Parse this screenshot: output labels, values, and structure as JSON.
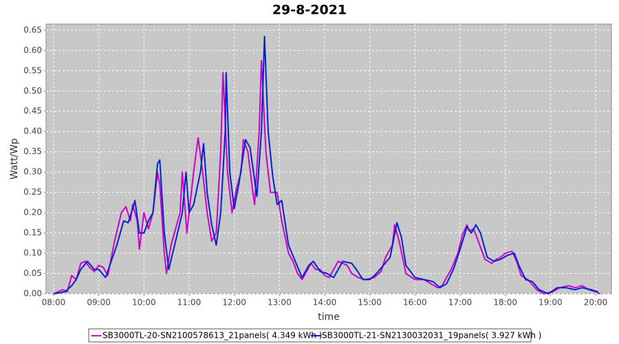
{
  "chart_data": {
    "type": "line",
    "title": "29-8-2021",
    "x_label": "time",
    "y_label": "Watt/Wp",
    "grid": true,
    "legend": "bottom",
    "xlim": [
      7.833,
      20.35
    ],
    "ylim": [
      0,
      0.665
    ],
    "xticks": [
      {
        "value": 8,
        "label": "08:00"
      },
      {
        "value": 9,
        "label": "09:00"
      },
      {
        "value": 10,
        "label": "10:00"
      },
      {
        "value": 11,
        "label": "11:00"
      },
      {
        "value": 12,
        "label": "12:00"
      },
      {
        "value": 13,
        "label": "13:00"
      },
      {
        "value": 14,
        "label": "14:00"
      },
      {
        "value": 15,
        "label": "15:00"
      },
      {
        "value": 16,
        "label": "16:00"
      },
      {
        "value": 17,
        "label": "17:00"
      },
      {
        "value": 18,
        "label": "18:00"
      },
      {
        "value": 19,
        "label": "19:00"
      },
      {
        "value": 20,
        "label": "20:00"
      }
    ],
    "yticks": [
      {
        "value": 0,
        "label": "0.00"
      },
      {
        "value": 0.05,
        "label": "0.05"
      },
      {
        "value": 0.1,
        "label": "0.10"
      },
      {
        "value": 0.15,
        "label": "0.15"
      },
      {
        "value": 0.2,
        "label": "0.20"
      },
      {
        "value": 0.25,
        "label": "0.25"
      },
      {
        "value": 0.3,
        "label": "0.30"
      },
      {
        "value": 0.35,
        "label": "0.35"
      },
      {
        "value": 0.4,
        "label": "0.40"
      },
      {
        "value": 0.45,
        "label": "0.45"
      },
      {
        "value": 0.5,
        "label": "0.50"
      },
      {
        "value": 0.55,
        "label": "0.55"
      },
      {
        "value": 0.6,
        "label": "0.60"
      },
      {
        "value": 0.65,
        "label": "0.65"
      }
    ],
    "series": [
      {
        "name": "SB3000TL-20-SN2100578613_21panels( 4.349 kWh )",
        "color": "#cc00cc",
        "x": [
          8.0,
          8.2,
          8.3,
          8.4,
          8.5,
          8.6,
          8.7,
          8.8,
          8.9,
          9.0,
          9.1,
          9.2,
          9.35,
          9.5,
          9.6,
          9.7,
          9.75,
          9.85,
          9.9,
          10.0,
          10.1,
          10.2,
          10.3,
          10.35,
          10.45,
          10.5,
          10.6,
          10.7,
          10.8,
          10.85,
          10.95,
          11.1,
          11.2,
          11.3,
          11.4,
          11.5,
          11.6,
          11.7,
          11.75,
          11.85,
          11.95,
          12.05,
          12.15,
          12.2,
          12.3,
          12.4,
          12.45,
          12.55,
          12.6,
          12.7,
          12.8,
          12.95,
          13.05,
          13.2,
          13.3,
          13.4,
          13.5,
          13.6,
          13.7,
          13.8,
          13.9,
          14.0,
          14.1,
          14.3,
          14.5,
          14.6,
          14.75,
          14.9,
          15.1,
          15.25,
          15.35,
          15.5,
          15.55,
          15.65,
          15.8,
          16.0,
          16.2,
          16.35,
          16.5,
          16.6,
          16.7,
          16.8,
          16.95,
          17.05,
          17.15,
          17.2,
          17.3,
          17.4,
          17.55,
          17.7,
          17.8,
          17.9,
          18.0,
          18.15,
          18.25,
          18.35,
          18.5,
          18.7,
          18.85,
          19.05,
          19.2,
          19.4,
          19.55,
          19.7,
          19.85,
          20.0,
          20.1
        ],
        "values": [
          0.0,
          0.01,
          0.005,
          0.045,
          0.035,
          0.075,
          0.08,
          0.065,
          0.055,
          0.07,
          0.065,
          0.045,
          0.13,
          0.2,
          0.215,
          0.18,
          0.22,
          0.18,
          0.11,
          0.2,
          0.16,
          0.2,
          0.3,
          0.27,
          0.1,
          0.05,
          0.12,
          0.16,
          0.2,
          0.3,
          0.15,
          0.3,
          0.385,
          0.3,
          0.2,
          0.13,
          0.15,
          0.35,
          0.545,
          0.3,
          0.2,
          0.26,
          0.3,
          0.38,
          0.35,
          0.26,
          0.22,
          0.4,
          0.575,
          0.35,
          0.25,
          0.25,
          0.18,
          0.1,
          0.08,
          0.05,
          0.035,
          0.055,
          0.075,
          0.06,
          0.06,
          0.045,
          0.04,
          0.08,
          0.07,
          0.05,
          0.04,
          0.035,
          0.04,
          0.055,
          0.09,
          0.12,
          0.17,
          0.13,
          0.05,
          0.035,
          0.035,
          0.025,
          0.015,
          0.02,
          0.04,
          0.06,
          0.1,
          0.145,
          0.17,
          0.155,
          0.16,
          0.13,
          0.085,
          0.075,
          0.085,
          0.09,
          0.1,
          0.105,
          0.08,
          0.045,
          0.035,
          0.01,
          0.0,
          0.005,
          0.015,
          0.02,
          0.015,
          0.02,
          0.01,
          0.005,
          0.0
        ]
      },
      {
        "name": "SB3000TL-21-SN2130032031_19panels( 3.927 kWh )",
        "color": "#0022cc",
        "x": [
          8.0,
          8.25,
          8.4,
          8.5,
          8.6,
          8.75,
          8.9,
          9.0,
          9.15,
          9.4,
          9.55,
          9.65,
          9.75,
          9.8,
          9.9,
          10.0,
          10.1,
          10.2,
          10.3,
          10.35,
          10.45,
          10.55,
          10.7,
          10.85,
          10.93,
          11.0,
          11.1,
          11.25,
          11.32,
          11.4,
          11.5,
          11.6,
          11.7,
          11.8,
          11.82,
          11.9,
          12.0,
          12.1,
          12.25,
          12.35,
          12.5,
          12.6,
          12.67,
          12.75,
          12.85,
          12.95,
          13.05,
          13.2,
          13.35,
          13.5,
          13.65,
          13.75,
          13.9,
          14.05,
          14.2,
          14.4,
          14.6,
          14.7,
          14.85,
          15.0,
          15.15,
          15.3,
          15.45,
          15.6,
          15.7,
          15.8,
          16.0,
          16.2,
          16.4,
          16.55,
          16.7,
          16.85,
          17.0,
          17.15,
          17.25,
          17.35,
          17.45,
          17.6,
          17.75,
          17.9,
          18.05,
          18.2,
          18.3,
          18.45,
          18.6,
          18.75,
          18.95,
          19.15,
          19.35,
          19.55,
          19.7,
          19.9,
          20.05
        ],
        "values": [
          0.0,
          0.005,
          0.02,
          0.035,
          0.06,
          0.08,
          0.06,
          0.06,
          0.04,
          0.12,
          0.18,
          0.175,
          0.21,
          0.23,
          0.15,
          0.15,
          0.18,
          0.2,
          0.32,
          0.33,
          0.15,
          0.06,
          0.13,
          0.2,
          0.3,
          0.2,
          0.22,
          0.3,
          0.37,
          0.25,
          0.17,
          0.12,
          0.2,
          0.4,
          0.545,
          0.3,
          0.21,
          0.27,
          0.38,
          0.36,
          0.24,
          0.4,
          0.635,
          0.4,
          0.29,
          0.22,
          0.23,
          0.12,
          0.08,
          0.04,
          0.07,
          0.08,
          0.055,
          0.05,
          0.04,
          0.08,
          0.075,
          0.06,
          0.035,
          0.035,
          0.05,
          0.07,
          0.09,
          0.175,
          0.14,
          0.07,
          0.04,
          0.035,
          0.03,
          0.015,
          0.025,
          0.06,
          0.11,
          0.165,
          0.15,
          0.17,
          0.15,
          0.09,
          0.08,
          0.085,
          0.095,
          0.1,
          0.07,
          0.035,
          0.03,
          0.01,
          0.0,
          0.015,
          0.015,
          0.01,
          0.015,
          0.01,
          0.005
        ]
      }
    ]
  }
}
